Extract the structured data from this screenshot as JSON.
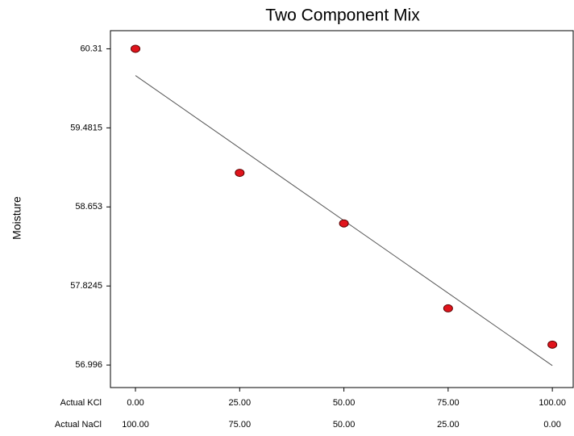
{
  "chart_data": {
    "type": "scatter",
    "title": "Two Component Mix",
    "ylabel": "Moisture",
    "xlabel": "Actual KCl",
    "x2label": "Actual NaCl",
    "x": [
      0,
      25,
      50,
      75,
      100
    ],
    "series": [
      {
        "values": [
          60.31,
          59.01,
          58.48,
          57.59,
          57.21
        ],
        "color": "#e0141c"
      }
    ],
    "fit": {
      "x": [
        0,
        100
      ],
      "values": [
        60.03,
        56.99
      ],
      "color": "#555555"
    },
    "xlim": [
      -6,
      105
    ],
    "x2lim": [
      106,
      -5
    ],
    "ylim": [
      56.76,
      60.5
    ],
    "yticks": [
      56.996,
      57.8245,
      58.653,
      59.4815,
      60.31
    ],
    "xticks": [
      {
        "value": 0,
        "label": "0.00"
      },
      {
        "value": 25,
        "label": "25.00"
      },
      {
        "value": 50,
        "label": "50.00"
      },
      {
        "value": 75,
        "label": "75.00"
      },
      {
        "value": 100,
        "label": "100.00"
      }
    ],
    "x2ticks": [
      {
        "value": 100,
        "label": "100.00"
      },
      {
        "value": 75,
        "label": "75.00"
      },
      {
        "value": 50,
        "label": "50.00"
      },
      {
        "value": 25,
        "label": "25.00"
      },
      {
        "value": 0,
        "label": "0.00"
      }
    ]
  }
}
